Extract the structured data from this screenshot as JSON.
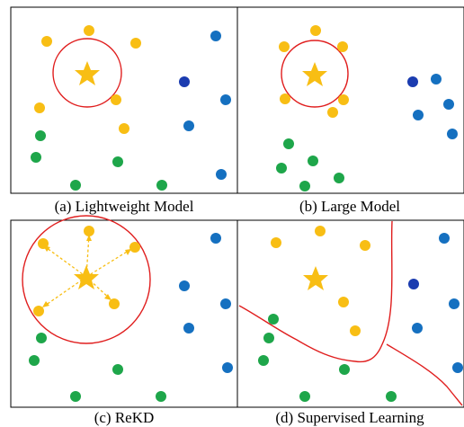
{
  "colors": {
    "yellow": "#F8BE14",
    "green": "#1EA64A",
    "blue": "#1570C0",
    "dark_blue": "#1B3CB0",
    "red": "#E01E1E",
    "star": "#F8BE14",
    "frame": "#000000"
  },
  "icons": [
    "star-icon"
  ],
  "captions": {
    "a": "(a) Lightweight Model",
    "b": "(b) Large Model",
    "c": "(c) ReKD",
    "d": "(d) Supervised Learning"
  }
}
